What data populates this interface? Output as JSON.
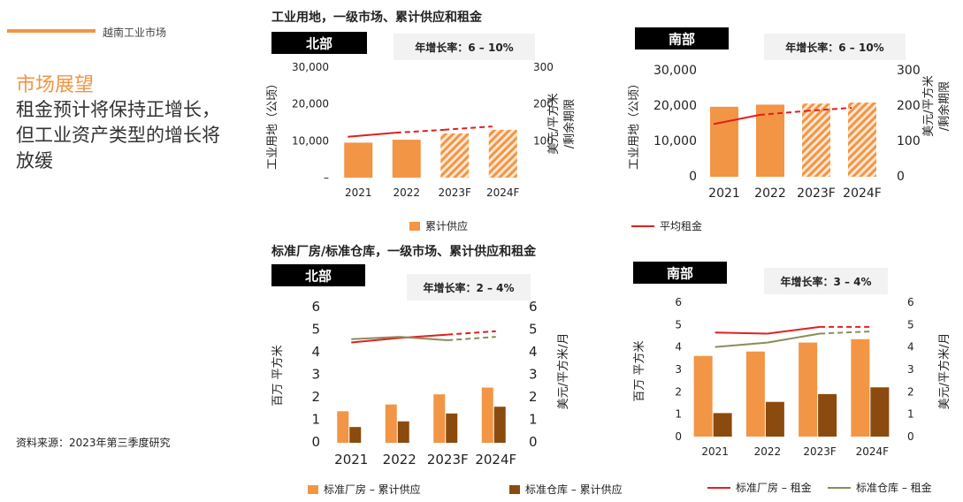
{
  "header": {
    "brand": "越南工业市场"
  },
  "outlook": {
    "title": "市场展望",
    "body": "租金预计将保持正增长，但工业资产类型的增长将放缓"
  },
  "source": "资料来源：2023年第三季度研究",
  "section1": {
    "title": "工业用地，一级市场、累计供应和租金"
  },
  "section2": {
    "title": "标准厂房/标准仓库，一级市场、累计供应和租金"
  },
  "legend1": {
    "supply": "累计供应",
    "rent": "平均租金"
  },
  "legend2": {
    "factory_supply": "标准厂房 – 累计供应",
    "warehouse_supply": "标准仓库 – 累计供应",
    "factory_rent": "标准厂房 – 租金",
    "warehouse_rent": "标准仓库 – 租金"
  },
  "colors": {
    "orange": "#f29545",
    "brown": "#8b4b0e",
    "red": "#e02020",
    "olive": "#8c8c5a",
    "growth_bg": "#f2f2f2"
  },
  "chart_data": [
    {
      "id": "land_north",
      "type": "bar",
      "region": "北部",
      "growth": "年增长率：6 – 10%",
      "categories": [
        "2021",
        "2022",
        "2023F",
        "2024F"
      ],
      "series": [
        {
          "name": "累计供应",
          "axis": "left",
          "values": [
            9500,
            10300,
            12000,
            13000
          ],
          "forecast_from": 2
        },
        {
          "name": "平均租金",
          "type": "line",
          "axis": "right",
          "values": [
            111,
            122,
            130,
            139
          ],
          "forecast_from": 1
        }
      ],
      "ylabel_left": "工业用地（公顷）",
      "ylabel_right": "美元/平方米/剩余期限",
      "yticks_left": [
        "–",
        "10,000",
        "20,000",
        "30,000"
      ],
      "yticks_right": [
        "",
        "100",
        "200",
        "300"
      ],
      "ylim_left": [
        0,
        30000
      ],
      "ylim_right": [
        0,
        300
      ]
    },
    {
      "id": "land_south",
      "type": "bar",
      "region": "南部",
      "growth": "年增长率：6 – 10%",
      "categories": [
        "2021",
        "2022",
        "2023F",
        "2024F"
      ],
      "series": [
        {
          "name": "累计供应",
          "axis": "left",
          "values": [
            19800,
            20400,
            20700,
            21000
          ],
          "forecast_from": 2
        },
        {
          "name": "平均租金",
          "type": "line",
          "axis": "right",
          "values": [
            149,
            175,
            186,
            195
          ],
          "forecast_from": 1
        }
      ],
      "ylabel_left": "工业用地（公顷）",
      "ylabel_right": "美元/平方米/剩余期限",
      "yticks_left": [
        "0",
        "10,000",
        "20,000",
        "30,000"
      ],
      "yticks_right": [
        "0",
        "100",
        "200",
        "300"
      ],
      "ylim_left": [
        0,
        30000
      ],
      "ylim_right": [
        0,
        300
      ]
    },
    {
      "id": "rbf_north",
      "type": "bar",
      "region": "北部",
      "growth": "年增长率：2 – 4%",
      "categories": [
        "2021",
        "2022",
        "2023F",
        "2024F"
      ],
      "series": [
        {
          "name": "标准厂房 – 累计供应",
          "axis": "left",
          "values": [
            1.4,
            1.7,
            2.15,
            2.45
          ]
        },
        {
          "name": "标准仓库 – 累计供应",
          "axis": "left",
          "values": [
            0.7,
            0.95,
            1.3,
            1.6
          ]
        },
        {
          "name": "标准厂房 – 租金",
          "type": "line",
          "axis": "right",
          "values": [
            4.45,
            4.65,
            4.8,
            4.95
          ],
          "forecast_from": 2
        },
        {
          "name": "标准仓库 – 租金",
          "type": "line",
          "axis": "right",
          "values": [
            4.6,
            4.7,
            4.55,
            4.7
          ],
          "forecast_from": 2
        }
      ],
      "ylabel_left": "百万 平方米",
      "ylabel_right": "美元/平方米/月",
      "yticks_left": [
        "0",
        "1",
        "2",
        "3",
        "4",
        "5",
        "6"
      ],
      "yticks_right": [
        "0",
        "1",
        "2",
        "3",
        "4",
        "5",
        "6"
      ],
      "ylim_left": [
        0,
        6
      ],
      "ylim_right": [
        0,
        6
      ]
    },
    {
      "id": "rbf_south",
      "type": "bar",
      "region": "南部",
      "growth": "年增长率：3 – 4%",
      "categories": [
        "2021",
        "2022",
        "2023F",
        "2024F"
      ],
      "series": [
        {
          "name": "标准厂房 – 累计供应",
          "axis": "left",
          "values": [
            3.6,
            3.8,
            4.2,
            4.35
          ]
        },
        {
          "name": "标准仓库 – 累计供应",
          "axis": "left",
          "values": [
            1.05,
            1.55,
            1.9,
            2.2
          ]
        },
        {
          "name": "标准厂房 – 租金",
          "type": "line",
          "axis": "right",
          "values": [
            4.65,
            4.6,
            4.9,
            4.9
          ],
          "forecast_from": 2
        },
        {
          "name": "标准仓库 – 租金",
          "type": "line",
          "axis": "right",
          "values": [
            4.0,
            4.2,
            4.6,
            4.7
          ],
          "forecast_from": 2
        }
      ],
      "ylabel_left": "百万 平方米",
      "ylabel_right": "美元/平方米/月",
      "yticks_left": [
        "0",
        "1",
        "2",
        "3",
        "4",
        "5",
        "6"
      ],
      "yticks_right": [
        "0",
        "1",
        "2",
        "3",
        "4",
        "5",
        "6"
      ],
      "ylim_left": [
        0,
        6
      ],
      "ylim_right": [
        0,
        6
      ]
    }
  ]
}
